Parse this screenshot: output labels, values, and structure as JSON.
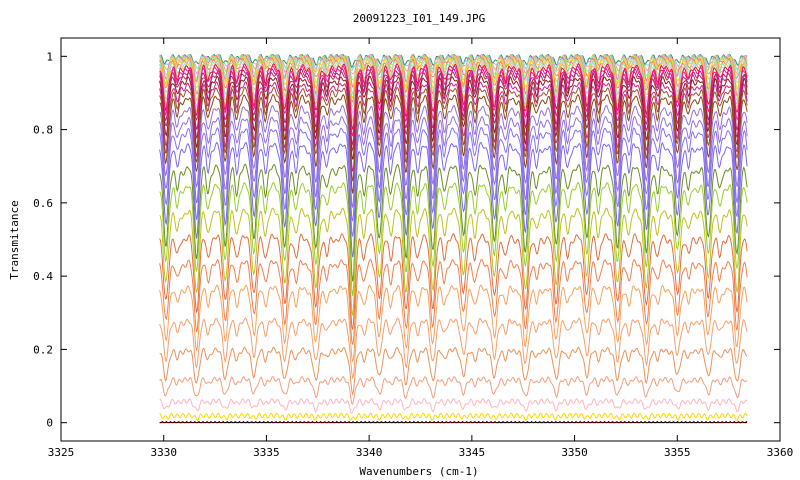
{
  "chart_data": {
    "type": "line",
    "title": "20091223_I01_149.JPG",
    "xlabel": "Wavenumbers (cm-1)",
    "ylabel": "Transmitance",
    "xlim": [
      3325,
      3360
    ],
    "ylim": [
      -0.05,
      1.05
    ],
    "x_ticks": [
      3325,
      3330,
      3335,
      3340,
      3345,
      3350,
      3355,
      3360
    ],
    "y_ticks": [
      0,
      0.2,
      0.4,
      0.6,
      0.8,
      1
    ],
    "y_tick_labels": [
      "0",
      "0.2",
      "0.4",
      "0.6",
      "0.8",
      "1"
    ],
    "x_range_data": [
      3329.8,
      3358.4
    ],
    "grid": false,
    "legend": "none",
    "absorption_line_positions": [
      3330.1,
      3331.6,
      3333.0,
      3334.4,
      3335.9,
      3337.4,
      3339.2,
      3340.5,
      3341.8,
      3343.1,
      3344.6,
      3346.1,
      3347.6,
      3349.1,
      3350.6,
      3352.1,
      3353.5,
      3355.0,
      3356.5,
      3357.9
    ],
    "strong_line_position": 3339.2,
    "series": [
      {
        "baseline": 1.0,
        "dip": 0.02,
        "color": "#2e8b57"
      },
      {
        "baseline": 1.0,
        "dip": 0.03,
        "color": "#87ceeb"
      },
      {
        "baseline": 0.999,
        "dip": 0.04,
        "color": "#ffa07a"
      },
      {
        "baseline": 0.998,
        "dip": 0.05,
        "color": "#98fb98"
      },
      {
        "baseline": 0.997,
        "dip": 0.06,
        "color": "#ff69b4"
      },
      {
        "baseline": 0.995,
        "dip": 0.07,
        "color": "#b0e0a0"
      },
      {
        "baseline": 0.993,
        "dip": 0.08,
        "color": "#ffd700"
      },
      {
        "baseline": 0.99,
        "dip": 0.09,
        "color": "#ff7f50"
      },
      {
        "baseline": 0.987,
        "dip": 0.1,
        "color": "#90ee90"
      },
      {
        "baseline": 0.983,
        "dip": 0.11,
        "color": "#c0c0ff"
      },
      {
        "baseline": 0.979,
        "dip": 0.12,
        "color": "#e0c060"
      },
      {
        "baseline": 0.974,
        "dip": 0.13,
        "color": "#dc143c"
      },
      {
        "baseline": 0.968,
        "dip": 0.14,
        "color": "#ff1493"
      },
      {
        "baseline": 0.96,
        "dip": 0.155,
        "color": "#c71585"
      },
      {
        "baseline": 0.952,
        "dip": 0.165,
        "color": "#b03060"
      },
      {
        "baseline": 0.94,
        "dip": 0.175,
        "color": "#8b1a1a"
      },
      {
        "baseline": 0.925,
        "dip": 0.185,
        "color": "#d02090"
      },
      {
        "baseline": 0.91,
        "dip": 0.19,
        "color": "#a0522d"
      },
      {
        "baseline": 0.89,
        "dip": 0.2,
        "color": "#8b4513"
      },
      {
        "baseline": 0.86,
        "dip": 0.21,
        "color": "#9370db"
      },
      {
        "baseline": 0.83,
        "dip": 0.22,
        "color": "#9370db"
      },
      {
        "baseline": 0.8,
        "dip": 0.23,
        "color": "#8470ff"
      },
      {
        "baseline": 0.76,
        "dip": 0.24,
        "color": "#7b68ee"
      },
      {
        "baseline": 0.7,
        "dip": 0.24,
        "color": "#6b8e23"
      },
      {
        "baseline": 0.65,
        "dip": 0.23,
        "color": "#9acd32"
      },
      {
        "baseline": 0.58,
        "dip": 0.22,
        "color": "#c0c020"
      },
      {
        "baseline": 0.51,
        "dip": 0.2,
        "color": "#e07040"
      },
      {
        "baseline": 0.44,
        "dip": 0.18,
        "color": "#f08050"
      },
      {
        "baseline": 0.37,
        "dip": 0.16,
        "color": "#f4a460"
      },
      {
        "baseline": 0.28,
        "dip": 0.12,
        "color": "#f4a070"
      },
      {
        "baseline": 0.2,
        "dip": 0.09,
        "color": "#e8955a"
      },
      {
        "baseline": 0.12,
        "dip": 0.05,
        "color": "#f0a080"
      },
      {
        "baseline": 0.06,
        "dip": 0.025,
        "color": "#ffb6c1"
      },
      {
        "baseline": 0.02,
        "dip": 0.008,
        "color": "#ffd700"
      },
      {
        "baseline": 0.0,
        "dip": 0.002,
        "color": "#ff0000"
      },
      {
        "baseline": 0.0,
        "dip": 0.0,
        "color": "#000000"
      }
    ]
  }
}
